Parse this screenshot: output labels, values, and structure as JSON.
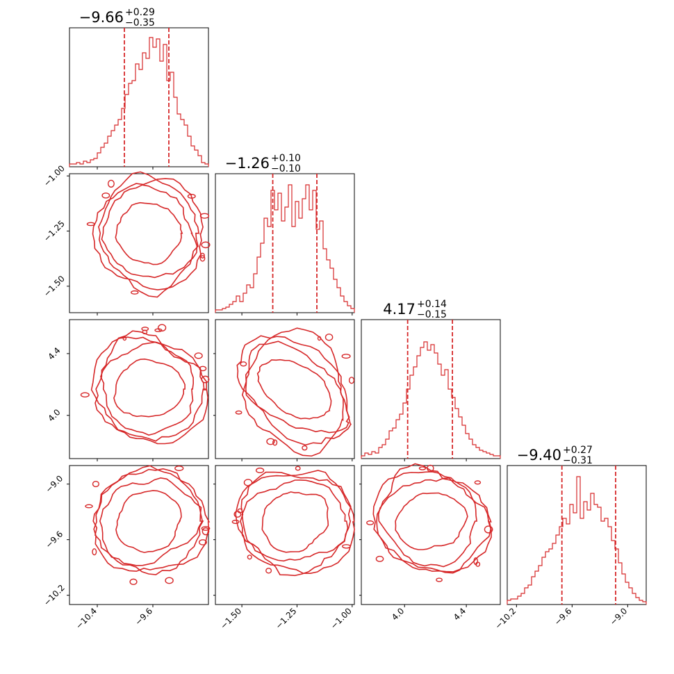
{
  "chart_data": {
    "type": "corner",
    "color": "#d62728",
    "parameters": [
      {
        "range": [
          -10.8,
          -8.8
        ],
        "ticks": [
          -10.4,
          -9.6
        ],
        "tick_labels": [
          "−10.4",
          "−9.6"
        ],
        "title": {
          "median": "−9.66",
          "plus": "+0.29",
          "minus": "−0.35"
        },
        "median": -9.66,
        "err_plus": 0.29,
        "err_minus": 0.35,
        "histogram": [
          0.02,
          0.02,
          0.03,
          0.02,
          0.04,
          0.03,
          0.05,
          0.06,
          0.1,
          0.14,
          0.17,
          0.22,
          0.26,
          0.3,
          0.34,
          0.42,
          0.52,
          0.6,
          0.62,
          0.74,
          0.7,
          0.82,
          0.78,
          0.93,
          0.86,
          0.92,
          0.76,
          0.88,
          0.62,
          0.68,
          0.5,
          0.38,
          0.34,
          0.3,
          0.22,
          0.15,
          0.12,
          0.08,
          0.03,
          0.02
        ]
      },
      {
        "range": [
          -1.62,
          -0.99
        ],
        "ticks": [
          -1.5,
          -1.25,
          -1.0
        ],
        "tick_labels": [
          "−1.50",
          "−1.25",
          "−1.00"
        ],
        "title": {
          "median": "−1.26",
          "plus": "+0.10",
          "minus": "−0.10"
        },
        "median": -1.26,
        "err_plus": 0.1,
        "err_minus": 0.1,
        "histogram": [
          0.02,
          0.02,
          0.03,
          0.04,
          0.06,
          0.08,
          0.12,
          0.08,
          0.14,
          0.2,
          0.18,
          0.28,
          0.4,
          0.5,
          0.68,
          0.62,
          0.88,
          0.74,
          0.86,
          0.66,
          0.76,
          0.92,
          0.62,
          0.8,
          0.68,
          0.82,
          0.92,
          0.74,
          0.88,
          0.6,
          0.66,
          0.46,
          0.38,
          0.32,
          0.24,
          0.18,
          0.12,
          0.08,
          0.05,
          0.03
        ]
      },
      {
        "range": [
          3.72,
          4.62
        ],
        "ticks": [
          4.0,
          4.4
        ],
        "tick_labels": [
          "4.0",
          "4.4"
        ],
        "title": {
          "median": "4.17",
          "plus": "+0.14",
          "minus": "−0.15"
        },
        "median": 4.17,
        "err_plus": 0.14,
        "err_minus": 0.15,
        "histogram": [
          0.02,
          0.04,
          0.03,
          0.05,
          0.04,
          0.08,
          0.1,
          0.14,
          0.2,
          0.22,
          0.28,
          0.32,
          0.4,
          0.5,
          0.6,
          0.66,
          0.74,
          0.8,
          0.84,
          0.78,
          0.82,
          0.76,
          0.68,
          0.6,
          0.64,
          0.5,
          0.44,
          0.36,
          0.3,
          0.24,
          0.18,
          0.14,
          0.1,
          0.08,
          0.06,
          0.05,
          0.04,
          0.03,
          0.02,
          0.02
        ]
      },
      {
        "range": [
          -10.3,
          -8.8
        ],
        "ticks": [
          -10.2,
          -9.6,
          -9.0
        ],
        "tick_labels": [
          "−10.2",
          "−9.6",
          "−9.0"
        ],
        "title": {
          "median": "−9.40",
          "plus": "+0.27",
          "minus": "−0.31"
        },
        "median": -9.4,
        "err_plus": 0.27,
        "err_minus": 0.31,
        "histogram": [
          0.03,
          0.04,
          0.04,
          0.06,
          0.08,
          0.12,
          0.14,
          0.2,
          0.24,
          0.28,
          0.34,
          0.38,
          0.4,
          0.44,
          0.5,
          0.56,
          0.62,
          0.58,
          0.72,
          0.66,
          0.92,
          0.62,
          0.74,
          0.68,
          0.8,
          0.72,
          0.7,
          0.6,
          0.62,
          0.56,
          0.46,
          0.4,
          0.3,
          0.22,
          0.16,
          0.12,
          0.08,
          0.05,
          0.03,
          0.02
        ]
      }
    ],
    "contour_levels": [
      0.39,
      0.86,
      0.99
    ]
  }
}
